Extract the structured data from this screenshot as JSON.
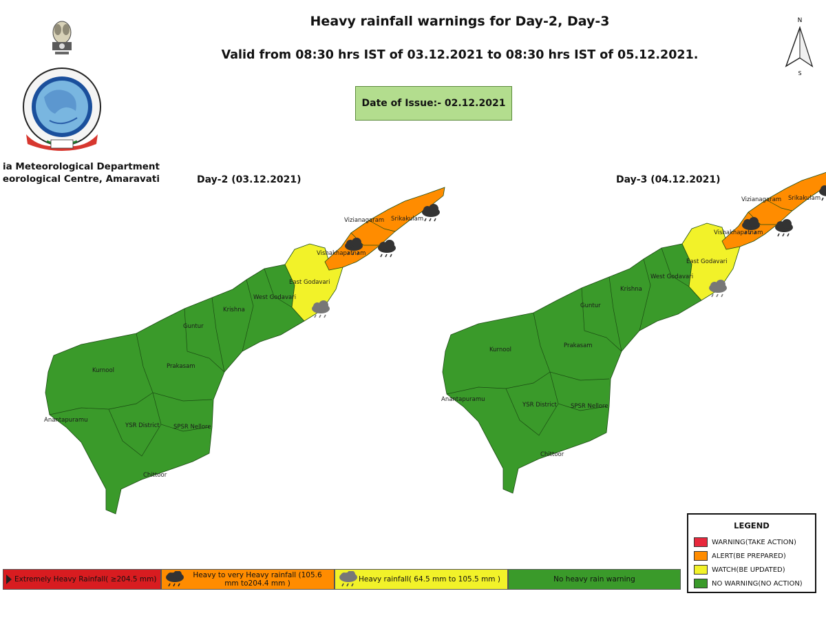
{
  "header": {
    "title": "Heavy rainfall warnings for Day-2, Day-3",
    "subtitle": "Valid from 08:30 hrs IST of 03.12.2021 to 08:30 hrs IST of 05.12.2021.",
    "issue_date": "Date of Issue:- 02.12.2021"
  },
  "department": {
    "line1": "ia Meteorological Department",
    "line2": "eorological Centre, Amaravati"
  },
  "compass": {
    "north": "N",
    "south": "S"
  },
  "maps": {
    "day2": {
      "title": "Day-2 (03.12.2021)",
      "districts": {
        "srikakulam": "Srikakulam",
        "vizianagaram": "Vizianagaram",
        "vishakhapatnam": "Vishakhapatnam",
        "east_godavari": "East Godavari",
        "west_godavari": "West Godavari",
        "krishna": "Krishna",
        "guntur": "Guntur",
        "kurnool": "Kurnool",
        "prakasam": "Prakasam",
        "anantapuramu": "Anantapuramu",
        "ysr": "YSR District",
        "nellore": "SPSR Nellore",
        "chittoor": "Chittoor"
      },
      "warning_levels": {
        "north": "alert",
        "mid": "watch",
        "south": "no-warning"
      }
    },
    "day3": {
      "title": "Day-3 (04.12.2021)",
      "districts": {
        "srikakulam": "Srikakulam",
        "vizianagaram": "Vizianagaram",
        "vishakhapatnam": "Vishakhapatnam",
        "east_godavari": "East Godavari",
        "west_godavari": "West Godavari",
        "krishna": "Krishna",
        "guntur": "Guntur",
        "kurnool": "Kurnool",
        "prakasam": "Prakasam",
        "anantapuramu": "Anantapuramu",
        "ysr": "YSR District",
        "nellore": "SPSR Nellore",
        "chittoor": "Chittoor"
      },
      "warning_levels": {
        "north": "alert",
        "mid": "watch",
        "south": "no-warning"
      }
    }
  },
  "legend": {
    "title": "LEGEND",
    "items": [
      {
        "label": "WARNING(TAKE ACTION)",
        "color": "#e8283c"
      },
      {
        "label": "ALERT(BE PREPARED)",
        "color": "#ff8c00"
      },
      {
        "label": "WATCH(BE UPDATED)",
        "color": "#f2f229"
      },
      {
        "label": "NO WARNING(NO ACTION)",
        "color": "#3a9a2a"
      }
    ]
  },
  "rainfall_scale": [
    {
      "label": "Extremely Heavy Rainfall( ≥204.5 mm)",
      "color": "#d81c20"
    },
    {
      "label": "Heavy to very Heavy rainfall  (105.6 mm to204.4 mm )",
      "color": "#ff8c00"
    },
    {
      "label": "Heavy rainfall( 64.5 mm to 105.5 mm )",
      "color": "#f2f229"
    },
    {
      "label": "No heavy rain warning",
      "color": "#3a9a2a"
    }
  ],
  "colors": {
    "no_warning": "#3a9a2a",
    "watch": "#f2f229",
    "alert": "#ff8c00",
    "border": "#1a4a12",
    "issue_box": "#b3dd8e"
  },
  "icons": [
    "rain-cloud-icon",
    "compass-icon",
    "imd-logo"
  ]
}
